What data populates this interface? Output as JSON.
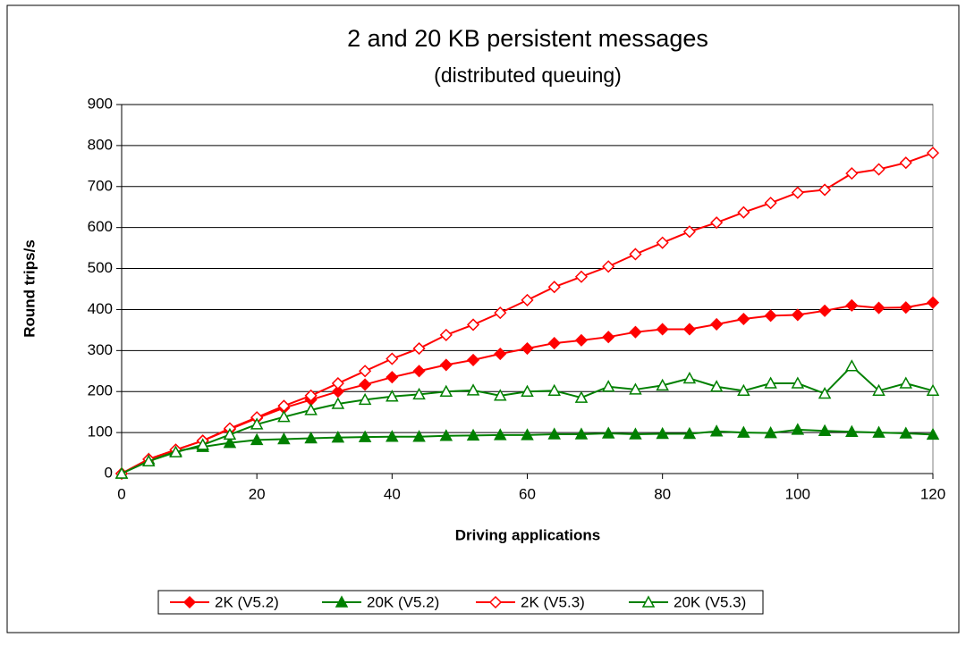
{
  "chart_data": {
    "type": "line",
    "title": "2 and 20 KB persistent messages",
    "subtitle": "(distributed queuing)",
    "x_label": "Driving applications",
    "y_label": "Round trips/s",
    "x": [
      0,
      4,
      8,
      12,
      16,
      20,
      24,
      28,
      32,
      36,
      40,
      44,
      48,
      52,
      56,
      60,
      64,
      68,
      72,
      76,
      80,
      84,
      88,
      92,
      96,
      100,
      104,
      108,
      112,
      116,
      120
    ],
    "series": [
      {
        "name": "2K (V5.2)",
        "color": "#ff0000",
        "marker": "diamond",
        "filled": true,
        "values": [
          0,
          35,
          58,
          80,
          108,
          135,
          160,
          180,
          200,
          217,
          235,
          250,
          265,
          277,
          292,
          305,
          318,
          325,
          333,
          345,
          352,
          352,
          364,
          377,
          385,
          387,
          397,
          410,
          404,
          405,
          417
        ]
      },
      {
        "name": "20K (V5.2)",
        "color": "#008000",
        "marker": "triangle",
        "filled": true,
        "values": [
          0,
          35,
          55,
          65,
          75,
          82,
          84,
          86,
          88,
          89,
          90,
          90,
          92,
          93,
          94,
          94,
          96,
          96,
          98,
          96,
          97,
          97,
          103,
          100,
          99,
          107,
          104,
          102,
          100,
          98,
          95
        ]
      },
      {
        "name": "2K (V5.3)",
        "color": "#ff0000",
        "marker": "diamond",
        "filled": false,
        "values": [
          0,
          35,
          58,
          80,
          110,
          137,
          165,
          190,
          220,
          250,
          280,
          305,
          338,
          363,
          392,
          423,
          455,
          480,
          505,
          535,
          563,
          590,
          612,
          637,
          660,
          685,
          692,
          732,
          742,
          758,
          782
        ]
      },
      {
        "name": "20K (V5.3)",
        "color": "#008000",
        "marker": "triangle",
        "filled": false,
        "values": [
          0,
          30,
          52,
          70,
          95,
          120,
          138,
          155,
          170,
          180,
          188,
          193,
          200,
          203,
          190,
          200,
          202,
          185,
          212,
          205,
          215,
          232,
          212,
          202,
          220,
          220,
          195,
          262,
          202,
          220,
          202
        ]
      }
    ],
    "xlim": [
      0,
      120
    ],
    "xticks": [
      0,
      20,
      40,
      60,
      80,
      100,
      120
    ],
    "ylim": [
      0,
      900
    ],
    "yticks": [
      0,
      100,
      200,
      300,
      400,
      500,
      600,
      700,
      800,
      900
    ],
    "grid": true,
    "legend": "bottom"
  }
}
